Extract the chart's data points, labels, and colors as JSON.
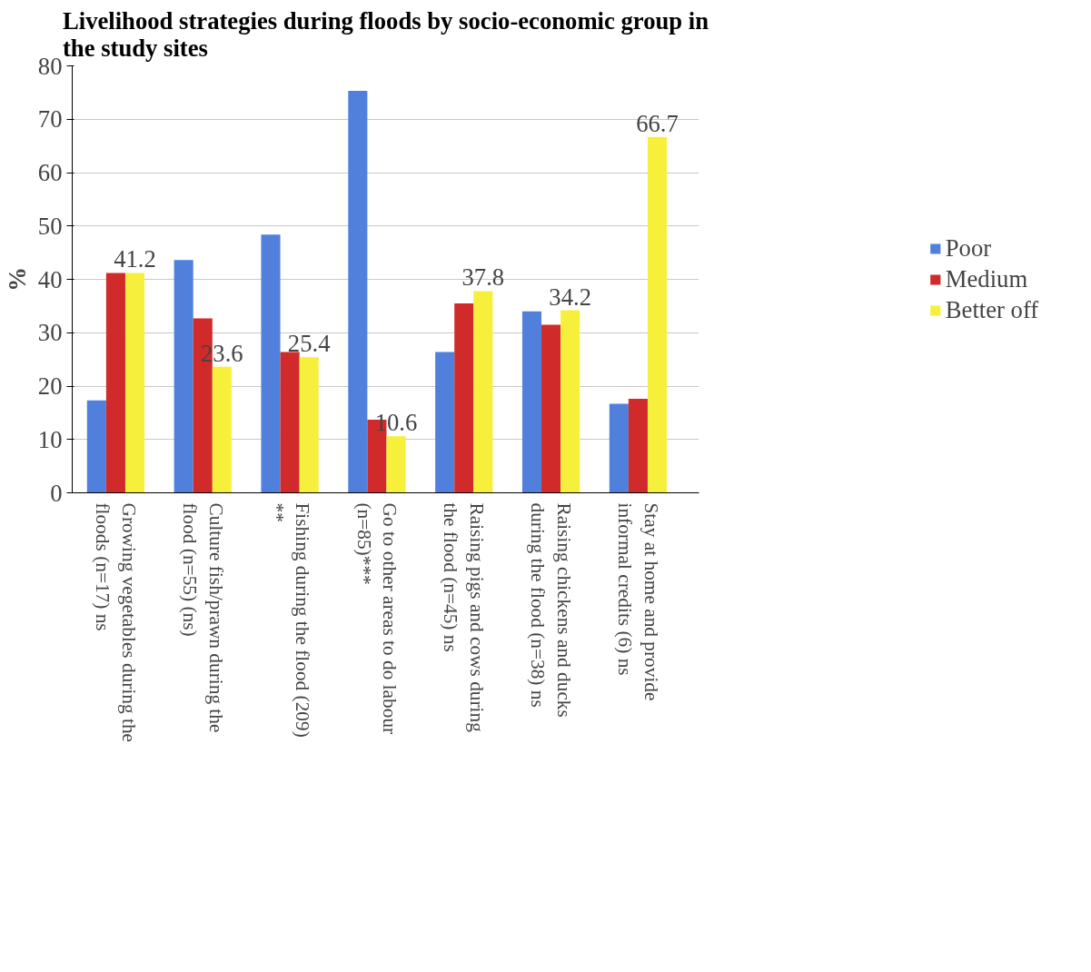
{
  "chart_data": {
    "type": "bar",
    "title": "Livelihood strategies during floods by socio-economic group in the study sites",
    "ylabel": "%",
    "categories": [
      "Growing vegetables during the floods (n=17) ns",
      "Culture fish/prawn during the flood (n=55) (ns)",
      "Fishing during the flood (209) **",
      "Go to other areas to do labour (n=85)***",
      "Raising pigs and cows during the flood (n=45) ns",
      "Raising chickens and ducks during the flood (n=38) ns",
      "Stay at home and provide informal credits (6) ns"
    ],
    "series": [
      {
        "name": "Poor",
        "color": "#5080dc",
        "values": [
          17.3,
          43.6,
          48.4,
          75.3,
          26.4,
          34.0,
          16.7
        ]
      },
      {
        "name": "Medium",
        "color": "#d02a2a",
        "values": [
          41.2,
          32.7,
          26.4,
          13.7,
          35.5,
          31.5,
          17.6
        ]
      },
      {
        "name": "Better off",
        "color": "#f6f03c",
        "values": [
          41.2,
          23.6,
          25.4,
          10.6,
          37.8,
          34.2,
          66.7
        ],
        "value_labels": [
          "41.2",
          "23.6",
          "25.4",
          "10.6",
          "37.8",
          "34.2",
          "66.7"
        ]
      }
    ],
    "ylim": [
      0,
      80
    ],
    "yticks": [
      0,
      10,
      20,
      30,
      40,
      50,
      60,
      70,
      80
    ],
    "grid": "y",
    "legend": "right"
  }
}
